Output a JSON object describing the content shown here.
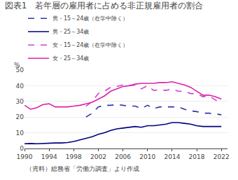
{
  "chart_data": {
    "type": "line",
    "title": "図表1　若年層の雇用者に占める非正規雇用者の割合",
    "ylabel": "%",
    "annotations": [
      "（資料）総務省「労働力調査」より作成"
    ],
    "x": [
      1990,
      1991,
      1992,
      1993,
      1994,
      1995,
      1996,
      1997,
      1998,
      1999,
      2000,
      2001,
      2002,
      2003,
      2004,
      2005,
      2006,
      2007,
      2008,
      2009,
      2010,
      2011,
      2012,
      2013,
      2014,
      2015,
      2016,
      2017,
      2018,
      2019,
      2020,
      2021,
      2022
    ],
    "series": [
      {
        "name": "男・15～24歳（在学中除く）",
        "color": "#3333aa",
        "line_style": "dashed",
        "values": [
          null,
          null,
          null,
          null,
          null,
          null,
          null,
          null,
          null,
          null,
          20.0,
          22.5,
          26.5,
          27.5,
          27.5,
          28.0,
          27.5,
          27.0,
          27.0,
          25.5,
          27.5,
          25.5,
          26.5,
          26.5,
          26.5,
          26.5,
          25.0,
          24.0,
          23.5,
          22.5,
          22.5,
          22.0,
          21.5
        ]
      },
      {
        "name": "男・25～34歳",
        "color": "#000080",
        "line_style": "solid",
        "values": [
          3.0,
          3.2,
          3.0,
          3.2,
          3.5,
          3.5,
          3.5,
          3.8,
          4.5,
          5.5,
          6.5,
          7.5,
          9.0,
          10.0,
          11.5,
          12.5,
          13.0,
          13.5,
          14.0,
          13.5,
          14.5,
          14.5,
          15.0,
          15.5,
          16.5,
          16.5,
          16.0,
          15.5,
          14.5,
          14.0,
          14.0,
          14.0,
          14.0
        ]
      },
      {
        "name": "女・15～24歳（在学中除く）",
        "color": "#cc44cc",
        "line_style": "dashed",
        "values": [
          null,
          null,
          null,
          null,
          null,
          null,
          null,
          null,
          null,
          null,
          27.0,
          30.0,
          35.0,
          36.5,
          39.0,
          39.5,
          40.5,
          40.0,
          40.5,
          38.0,
          40.0,
          37.0,
          37.5,
          37.0,
          38.0,
          36.5,
          36.5,
          35.0,
          35.0,
          33.0,
          33.5,
          31.0,
          28.5
        ]
      },
      {
        "name": "女・25～34歳",
        "color": "#dd22aa",
        "line_style": "solid",
        "values": [
          27.5,
          25.0,
          26.0,
          28.0,
          28.5,
          26.5,
          26.5,
          26.5,
          27.0,
          27.5,
          28.5,
          29.5,
          31.5,
          33.5,
          36.5,
          38.0,
          39.5,
          40.0,
          41.0,
          41.5,
          41.5,
          41.5,
          42.0,
          42.0,
          42.5,
          41.5,
          40.5,
          39.0,
          36.5,
          34.0,
          34.0,
          33.0,
          31.5
        ]
      }
    ],
    "xlim": [
      1990,
      2023
    ],
    "ylim": [
      0,
      50
    ],
    "xticks": [
      1990,
      1994,
      1998,
      2002,
      2006,
      2010,
      2014,
      2018,
      2022
    ],
    "yticks": [
      0,
      10,
      20,
      30,
      40,
      50
    ],
    "grid": "y",
    "legend": "upper left"
  }
}
